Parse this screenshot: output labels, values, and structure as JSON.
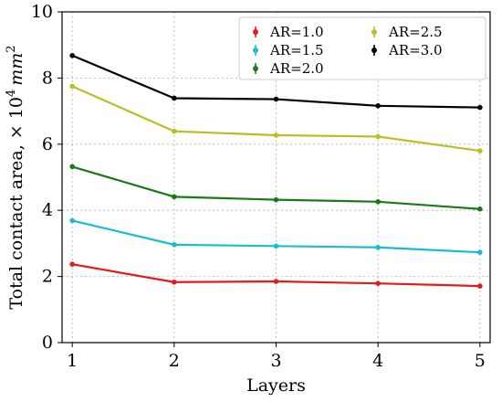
{
  "chart_data": {
    "type": "line",
    "title": "",
    "xlabel": "Layers",
    "ylabel": "Total contact area, × 10",
    "ylabel_exponent": "4",
    "ylabel_unit": "mm",
    "ylabel_unit_exponent": "2",
    "x": [
      1,
      2,
      3,
      4,
      5
    ],
    "x_tick_labels": [
      "1",
      "2",
      "3",
      "4",
      "5"
    ],
    "y_tick_labels": [
      "0",
      "2",
      "4",
      "6",
      "8",
      "10"
    ],
    "y_ticks": [
      0,
      2,
      4,
      6,
      8,
      10
    ],
    "xlim": [
      0.9,
      5.1
    ],
    "ylim": [
      0,
      10
    ],
    "grid": true,
    "legend_position": "top-right",
    "legend_columns": 2,
    "series": [
      {
        "name": "AR=1.0",
        "color": "#e41a1c",
        "values": [
          2.37,
          1.83,
          1.85,
          1.79,
          1.71
        ]
      },
      {
        "name": "AR=1.5",
        "color": "#17becf",
        "values": [
          3.69,
          2.96,
          2.92,
          2.88,
          2.73
        ]
      },
      {
        "name": "AR=2.0",
        "color": "#1a7a1a",
        "values": [
          5.32,
          4.41,
          4.32,
          4.26,
          4.04
        ]
      },
      {
        "name": "AR=2.5",
        "color": "#bcbd22",
        "values": [
          7.75,
          6.39,
          6.27,
          6.23,
          5.8
        ]
      },
      {
        "name": "AR=3.0",
        "color": "#000000",
        "values": [
          8.68,
          7.39,
          7.36,
          7.16,
          7.11
        ]
      }
    ]
  }
}
